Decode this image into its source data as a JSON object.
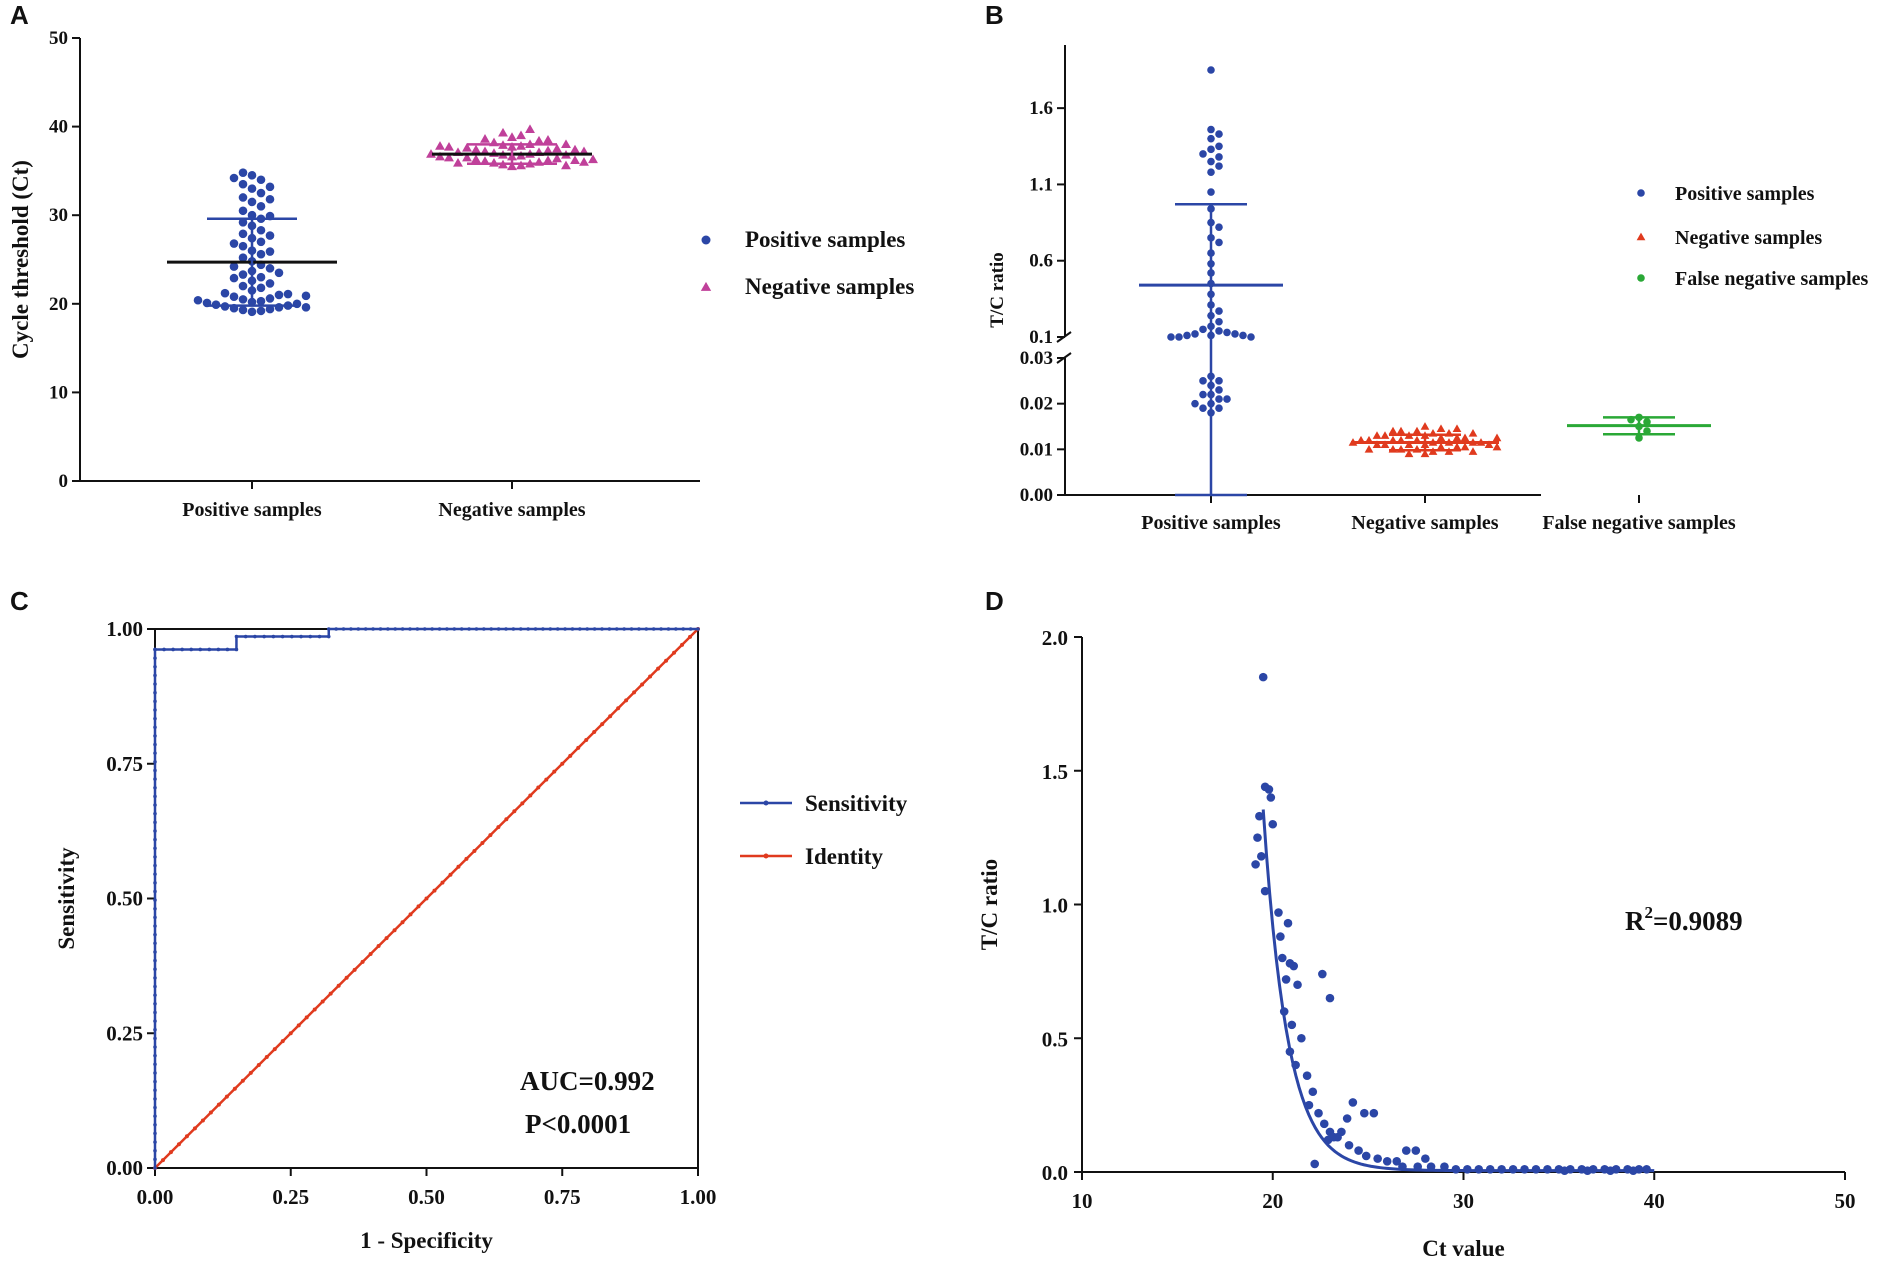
{
  "chart_data": [
    {
      "panel": "A",
      "type": "scatter",
      "ylabel": "Cycle threshold (Ct)",
      "xlabel": "",
      "ylim": [
        0,
        50
      ],
      "yticks": [
        "0",
        "10",
        "20",
        "30",
        "40",
        "50"
      ],
      "categories": [
        "Positive samples",
        "Negative samples"
      ],
      "series": [
        {
          "name": "Positive samples",
          "color": "#2b46a6",
          "marker": "circle",
          "category": 0,
          "mean": 24.7,
          "sd_low": 19.8,
          "sd_high": 29.6,
          "values": [
            19.1,
            19.2,
            19.3,
            19.4,
            19.5,
            19.6,
            19.7,
            19.8,
            19.9,
            20.0,
            20.1,
            20.2,
            20.3,
            20.5,
            20.6,
            20.8,
            21.0,
            21.2,
            21.5,
            21.8,
            22.0,
            22.3,
            22.6,
            23.0,
            23.3,
            23.7,
            24.0,
            24.4,
            24.8,
            25.2,
            25.6,
            26.0,
            26.5,
            27.0,
            27.4,
            27.9,
            28.3,
            28.8,
            29.2,
            29.6,
            30.0,
            30.5,
            31.0,
            31.5,
            32.0,
            32.5,
            33.0,
            33.5,
            34.0,
            34.5,
            34.8,
            19.6,
            20.4,
            21.1,
            22.9,
            24.2,
            25.9,
            27.7,
            29.9,
            31.8,
            33.2,
            34.2,
            20.9,
            23.5,
            26.8
          ]
        },
        {
          "name": "Negative samples",
          "color": "#c0409a",
          "marker": "triangle",
          "category": 1,
          "mean": 36.9,
          "sd_low": 35.8,
          "sd_high": 38.0,
          "values": [
            35.5,
            35.6,
            35.7,
            35.8,
            35.9,
            36.0,
            36.1,
            36.2,
            36.3,
            36.4,
            36.5,
            36.6,
            36.7,
            36.8,
            36.9,
            37.0,
            37.1,
            37.2,
            37.3,
            37.4,
            37.5,
            37.6,
            37.7,
            37.8,
            37.9,
            38.0,
            38.2,
            38.4,
            38.6,
            38.8,
            39.0,
            39.3,
            39.7,
            35.6,
            35.9,
            36.2,
            36.5,
            36.8,
            37.1,
            37.4,
            37.7,
            38.0,
            36.0,
            36.6,
            37.2,
            37.8,
            38.5,
            36.3,
            36.9
          ]
        }
      ],
      "legend": [
        "Positive samples",
        "Negative samples"
      ],
      "legend_position": "right"
    },
    {
      "panel": "B",
      "type": "scatter",
      "ylabel": "T/C ratio",
      "xlabel": "",
      "y_axis_break": [
        0.03,
        0.1
      ],
      "yticks": [
        "0.00",
        "0.01",
        "0.02",
        "0.03",
        "0.1",
        "0.6",
        "1.1",
        "1.6"
      ],
      "categories": [
        "Positive samples",
        "Negative samples",
        "False negative samples"
      ],
      "series": [
        {
          "name": "Positive samples",
          "color": "#2b46a6",
          "marker": "circle",
          "category": 0,
          "mean": 0.44,
          "sd_low": 0.0,
          "sd_high": 0.97,
          "values": [
            1.85,
            1.46,
            1.43,
            1.4,
            1.35,
            1.33,
            1.3,
            1.28,
            1.25,
            1.22,
            1.18,
            1.05,
            0.94,
            0.85,
            0.82,
            0.75,
            0.72,
            0.65,
            0.58,
            0.52,
            0.45,
            0.38,
            0.31,
            0.27,
            0.24,
            0.2,
            0.17,
            0.15,
            0.14,
            0.13,
            0.12,
            0.12,
            0.11,
            0.11,
            0.11,
            0.1,
            0.1,
            0.1,
            0.026,
            0.025,
            0.024,
            0.023,
            0.022,
            0.021,
            0.02,
            0.019,
            0.019,
            0.018,
            0.025,
            0.022,
            0.021,
            0.02
          ]
        },
        {
          "name": "Negative samples",
          "color": "#e03a1e",
          "marker": "triangle",
          "category": 1,
          "mean": 0.0115,
          "sd_low": 0.0098,
          "sd_high": 0.0132,
          "values": [
            0.009,
            0.0095,
            0.01,
            0.0105,
            0.011,
            0.0115,
            0.012,
            0.0125,
            0.013,
            0.0135,
            0.014,
            0.0145,
            0.015,
            0.009,
            0.0095,
            0.01,
            0.0105,
            0.011,
            0.0115,
            0.012,
            0.0125,
            0.013,
            0.0135,
            0.014,
            0.0145,
            0.01,
            0.0105,
            0.011,
            0.0115,
            0.012,
            0.0125,
            0.013,
            0.011,
            0.0115,
            0.012,
            0.01,
            0.011,
            0.012,
            0.013,
            0.014,
            0.0095,
            0.0105,
            0.0115,
            0.0125,
            0.0135
          ]
        },
        {
          "name": "False negative samples",
          "color": "#2aa836",
          "marker": "circle",
          "category": 2,
          "mean": 0.0152,
          "sd_low": 0.0133,
          "sd_high": 0.017,
          "values": [
            0.0125,
            0.014,
            0.015,
            0.016,
            0.0165,
            0.017
          ]
        }
      ],
      "legend": [
        "Positive samples",
        "Negative samples",
        "False negative samples"
      ],
      "legend_position": "right"
    },
    {
      "panel": "C",
      "type": "line",
      "xlabel": "1 - Specificity",
      "ylabel": "Sensitivity",
      "xlim": [
        0,
        1
      ],
      "ylim": [
        0,
        1
      ],
      "xticks": [
        "0.00",
        "0.25",
        "0.50",
        "0.75",
        "1.00"
      ],
      "yticks": [
        "0.00",
        "0.25",
        "0.50",
        "0.75",
        "1.00"
      ],
      "series": [
        {
          "name": "Sensitivity",
          "color": "#2b46a6",
          "points": [
            [
              0,
              0
            ],
            [
              0,
              0.962
            ],
            [
              0.15,
              0.962
            ],
            [
              0.15,
              0.986
            ],
            [
              0.32,
              0.986
            ],
            [
              0.32,
              1.0
            ],
            [
              1.0,
              1.0
            ]
          ]
        },
        {
          "name": "Identity",
          "color": "#e03a1e",
          "points": [
            [
              0,
              0
            ],
            [
              1,
              1
            ]
          ]
        }
      ],
      "legend": [
        "Sensitivity",
        "Identity"
      ],
      "legend_position": "right",
      "annotations": [
        "AUC=0.992",
        "P<0.0001"
      ]
    },
    {
      "panel": "D",
      "type": "scatter",
      "xlabel": "Ct value",
      "ylabel": "T/C ratio",
      "xlim": [
        10,
        50
      ],
      "ylim": [
        0,
        2.0
      ],
      "xticks": [
        "10",
        "20",
        "30",
        "40",
        "50"
      ],
      "yticks": [
        "0.0",
        "0.5",
        "1.0",
        "1.5",
        "2.0"
      ],
      "points": [
        [
          19.5,
          1.85
        ],
        [
          19.6,
          1.44
        ],
        [
          19.8,
          1.43
        ],
        [
          19.9,
          1.4
        ],
        [
          20.0,
          1.3
        ],
        [
          19.3,
          1.33
        ],
        [
          19.2,
          1.25
        ],
        [
          19.4,
          1.18
        ],
        [
          19.1,
          1.15
        ],
        [
          19.6,
          1.05
        ],
        [
          20.3,
          0.97
        ],
        [
          20.4,
          0.88
        ],
        [
          20.8,
          0.93
        ],
        [
          20.5,
          0.8
        ],
        [
          20.9,
          0.78
        ],
        [
          21.1,
          0.77
        ],
        [
          20.7,
          0.72
        ],
        [
          21.3,
          0.7
        ],
        [
          20.6,
          0.6
        ],
        [
          21.0,
          0.55
        ],
        [
          21.5,
          0.5
        ],
        [
          20.9,
          0.45
        ],
        [
          21.2,
          0.4
        ],
        [
          22.6,
          0.74
        ],
        [
          23.0,
          0.65
        ],
        [
          21.8,
          0.36
        ],
        [
          22.1,
          0.3
        ],
        [
          21.9,
          0.25
        ],
        [
          22.4,
          0.22
        ],
        [
          22.7,
          0.18
        ],
        [
          23.0,
          0.15
        ],
        [
          23.2,
          0.13
        ],
        [
          22.9,
          0.12
        ],
        [
          23.4,
          0.13
        ],
        [
          23.6,
          0.15
        ],
        [
          23.9,
          0.2
        ],
        [
          24.2,
          0.26
        ],
        [
          24.8,
          0.22
        ],
        [
          25.3,
          0.22
        ],
        [
          24.0,
          0.1
        ],
        [
          24.5,
          0.08
        ],
        [
          24.9,
          0.06
        ],
        [
          25.5,
          0.05
        ],
        [
          26.0,
          0.04
        ],
        [
          26.5,
          0.04
        ],
        [
          27.0,
          0.08
        ],
        [
          27.5,
          0.08
        ],
        [
          28.0,
          0.05
        ],
        [
          22.2,
          0.03
        ],
        [
          26.8,
          0.02
        ],
        [
          27.6,
          0.02
        ],
        [
          28.3,
          0.02
        ],
        [
          29.0,
          0.02
        ],
        [
          29.6,
          0.01
        ],
        [
          30.2,
          0.01
        ],
        [
          30.8,
          0.01
        ],
        [
          31.4,
          0.01
        ],
        [
          32.0,
          0.01
        ],
        [
          32.6,
          0.01
        ],
        [
          33.2,
          0.01
        ],
        [
          33.8,
          0.01
        ],
        [
          34.4,
          0.01
        ],
        [
          35.0,
          0.01
        ],
        [
          35.6,
          0.01
        ],
        [
          36.2,
          0.01
        ],
        [
          36.8,
          0.01
        ],
        [
          37.4,
          0.01
        ],
        [
          38.0,
          0.01
        ],
        [
          38.6,
          0.01
        ],
        [
          39.2,
          0.01
        ],
        [
          39.6,
          0.01
        ],
        [
          35.3,
          0.005
        ],
        [
          36.5,
          0.005
        ],
        [
          37.7,
          0.005
        ],
        [
          38.9,
          0.005
        ]
      ],
      "fit": {
        "name": "exponential decay fit",
        "color": "#2b46a6",
        "x": [
          19.5,
          40
        ]
      },
      "annotations": [
        "R2=0.9089"
      ]
    }
  ],
  "panels": {
    "a": "A",
    "b": "B",
    "c": "C",
    "d": "D"
  },
  "annotation_c": {
    "auc": "AUC=0.992",
    "p": "P<0.0001"
  },
  "annotation_d": {
    "r2_prefix": "R",
    "r2_sup": "2",
    "r2_value": "=0.9089"
  },
  "colors": {
    "blue": "#2b46a6",
    "magenta": "#c0409a",
    "red": "#e03a1e",
    "green": "#2aa836",
    "black": "#111111"
  }
}
